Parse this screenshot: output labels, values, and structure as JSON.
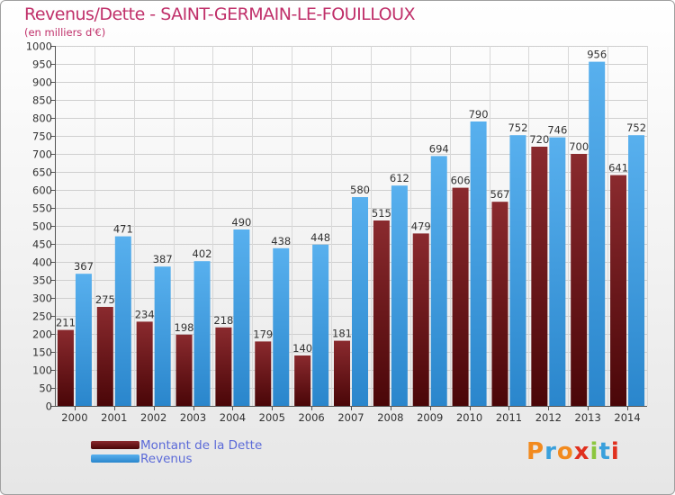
{
  "page": {
    "title": "Revenus/Dette - SAINT-GERMAIN-LE-FOUILLOUX",
    "subtitle": "(en milliers d'€)",
    "logo": [
      "P",
      "r",
      "o",
      "x",
      "i",
      "t",
      "i"
    ],
    "logo_colors": [
      "#f28a1e",
      "#3aa0dc",
      "#f28a1e",
      "#e0301e",
      "#8cc63f",
      "#3aa0dc",
      "#e0301e"
    ]
  },
  "chart_data": {
    "type": "bar",
    "title": "Revenus/Dette - SAINT-GERMAIN-LE-FOUILLOUX",
    "ylabel": "(en milliers d'€)",
    "ylim": [
      0,
      1000
    ],
    "ytick_step": 50,
    "grid": true,
    "legend_position": "bottom-left",
    "categories": [
      "2000",
      "2001",
      "2002",
      "2003",
      "2004",
      "2005",
      "2006",
      "2007",
      "2008",
      "2009",
      "2010",
      "2011",
      "2012",
      "2013",
      "2014"
    ],
    "series": [
      {
        "name": "Montant de la Dette",
        "color": "#7b1f24",
        "values": [
          211,
          275,
          234,
          198,
          218,
          179,
          140,
          181,
          515,
          479,
          606,
          567,
          720,
          700,
          641
        ]
      },
      {
        "name": "Revenus",
        "color": "#3a9de2",
        "values": [
          367,
          471,
          387,
          402,
          490,
          438,
          448,
          580,
          612,
          694,
          790,
          752,
          746,
          956,
          752
        ]
      }
    ]
  }
}
